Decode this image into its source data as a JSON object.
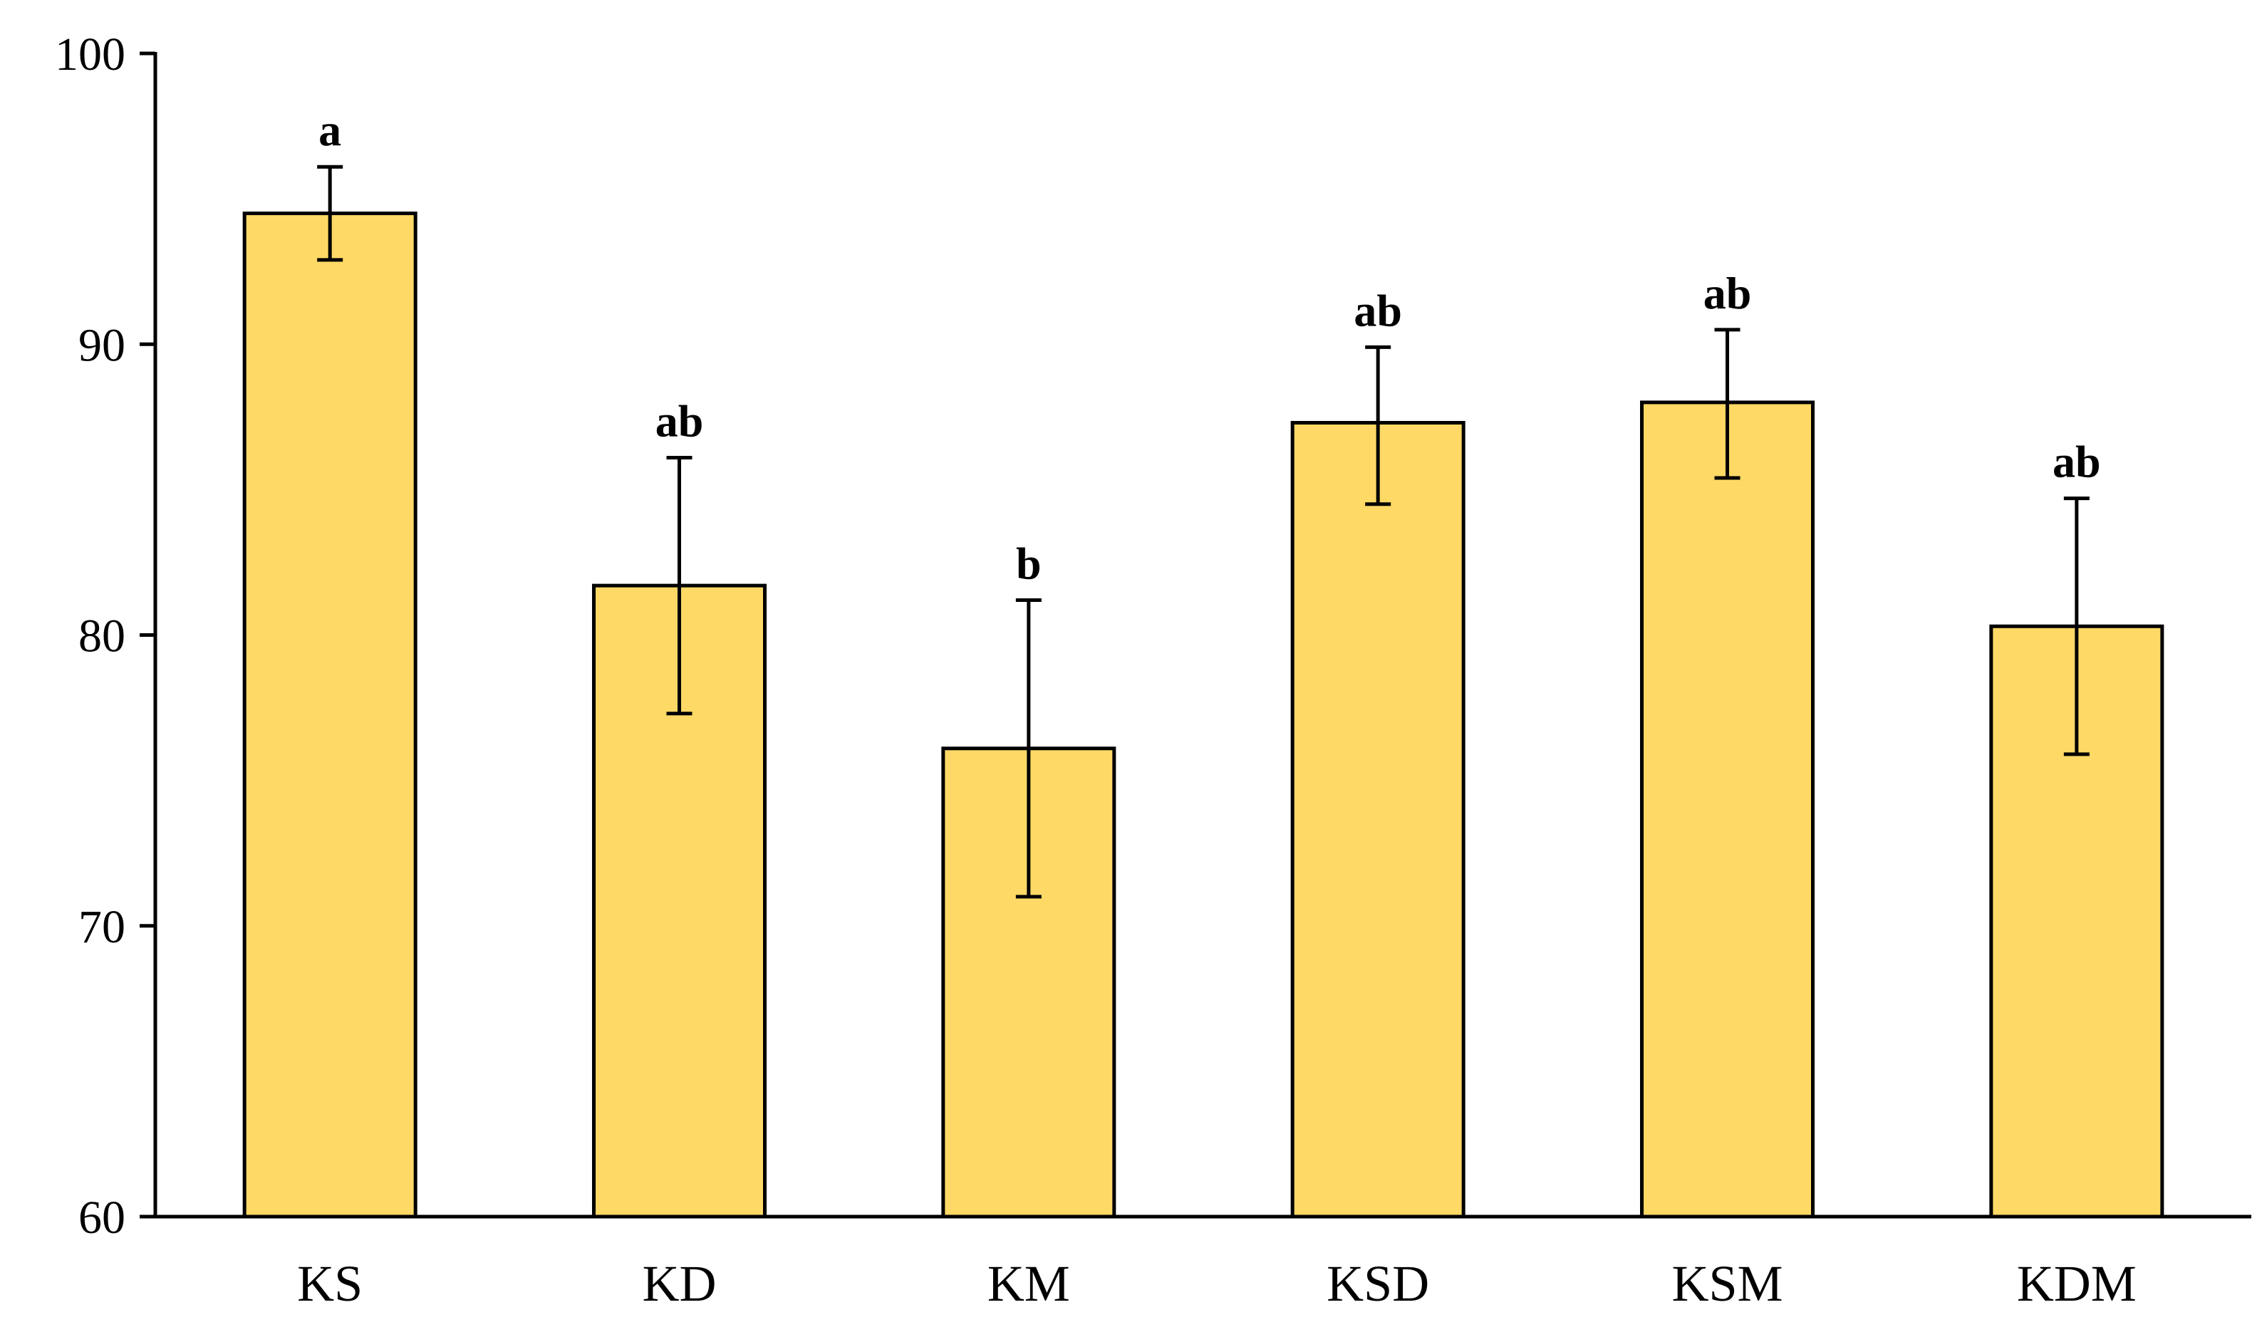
{
  "chart_data": {
    "type": "bar",
    "title": "",
    "xlabel": "",
    "ylabel": "",
    "ylim": [
      60,
      100
    ],
    "yticks": [
      60,
      70,
      80,
      90,
      100
    ],
    "grid": false,
    "categories": [
      "KS",
      "KD",
      "KM",
      "KSD",
      "KSM",
      "KDM"
    ],
    "values": [
      94.5,
      81.7,
      76.1,
      87.3,
      88.0,
      80.3
    ],
    "error_low": [
      92.9,
      77.3,
      71.0,
      84.5,
      85.4,
      75.9
    ],
    "error_high": [
      96.1,
      86.1,
      81.2,
      89.9,
      90.5,
      84.7
    ],
    "significance_labels": [
      "a",
      "ab",
      "b",
      "ab",
      "ab",
      "ab"
    ],
    "colors": {
      "bar_fill": "#FFD966",
      "bar_stroke": "#000000",
      "axis": "#000000"
    }
  }
}
